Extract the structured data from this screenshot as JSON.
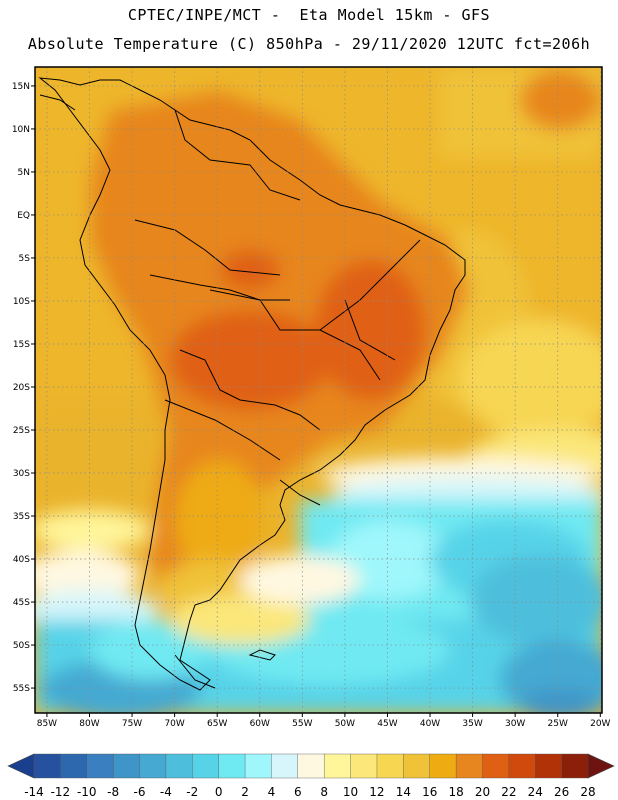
{
  "title_line1": "CPTEC/INPE/MCT -  Eta Model 15km - GFS",
  "title_line2": "Absolute Temperature (C) 850hPa - 29/11/2020 12UTC fct=206h",
  "lat_labels": [
    "15N",
    "10N",
    "5N",
    "EQ",
    "5S",
    "10S",
    "15S",
    "20S",
    "25S",
    "30S",
    "35S",
    "40S",
    "45S",
    "50S",
    "55S"
  ],
  "lat_values": [
    15,
    10,
    5,
    0,
    -5,
    -10,
    -15,
    -20,
    -25,
    -30,
    -35,
    -40,
    -45,
    -50,
    -55
  ],
  "lon_labels": [
    "85W",
    "80W",
    "75W",
    "70W",
    "65W",
    "60W",
    "55W",
    "50W",
    "45W",
    "40W",
    "35W",
    "30W",
    "25W",
    "20W"
  ],
  "lon_values": [
    -85,
    -80,
    -75,
    -70,
    -65,
    -60,
    -55,
    -50,
    -45,
    -40,
    -35,
    -30,
    -25,
    -20
  ],
  "colorbar": {
    "labels": [
      "-14",
      "-12",
      "-10",
      "-8",
      "-6",
      "-4",
      "-2",
      "0",
      "2",
      "4",
      "6",
      "8",
      "10",
      "12",
      "14",
      "16",
      "18",
      "20",
      "22",
      "24",
      "26",
      "28"
    ],
    "colors": [
      "#1a3f8f",
      "#25519f",
      "#2d67ae",
      "#3a7fbf",
      "#3f95c8",
      "#45a9d2",
      "#4dbfdd",
      "#57d3e8",
      "#6fe9f2",
      "#9ff7fb",
      "#d6f6fb",
      "#fff8e1",
      "#fff59a",
      "#fbe77a",
      "#f7d652",
      "#f0c238",
      "#eeab12",
      "#e7861e",
      "#e06013",
      "#cf4a0c",
      "#b23208",
      "#8c1f0a",
      "#6e1410"
    ]
  }
}
